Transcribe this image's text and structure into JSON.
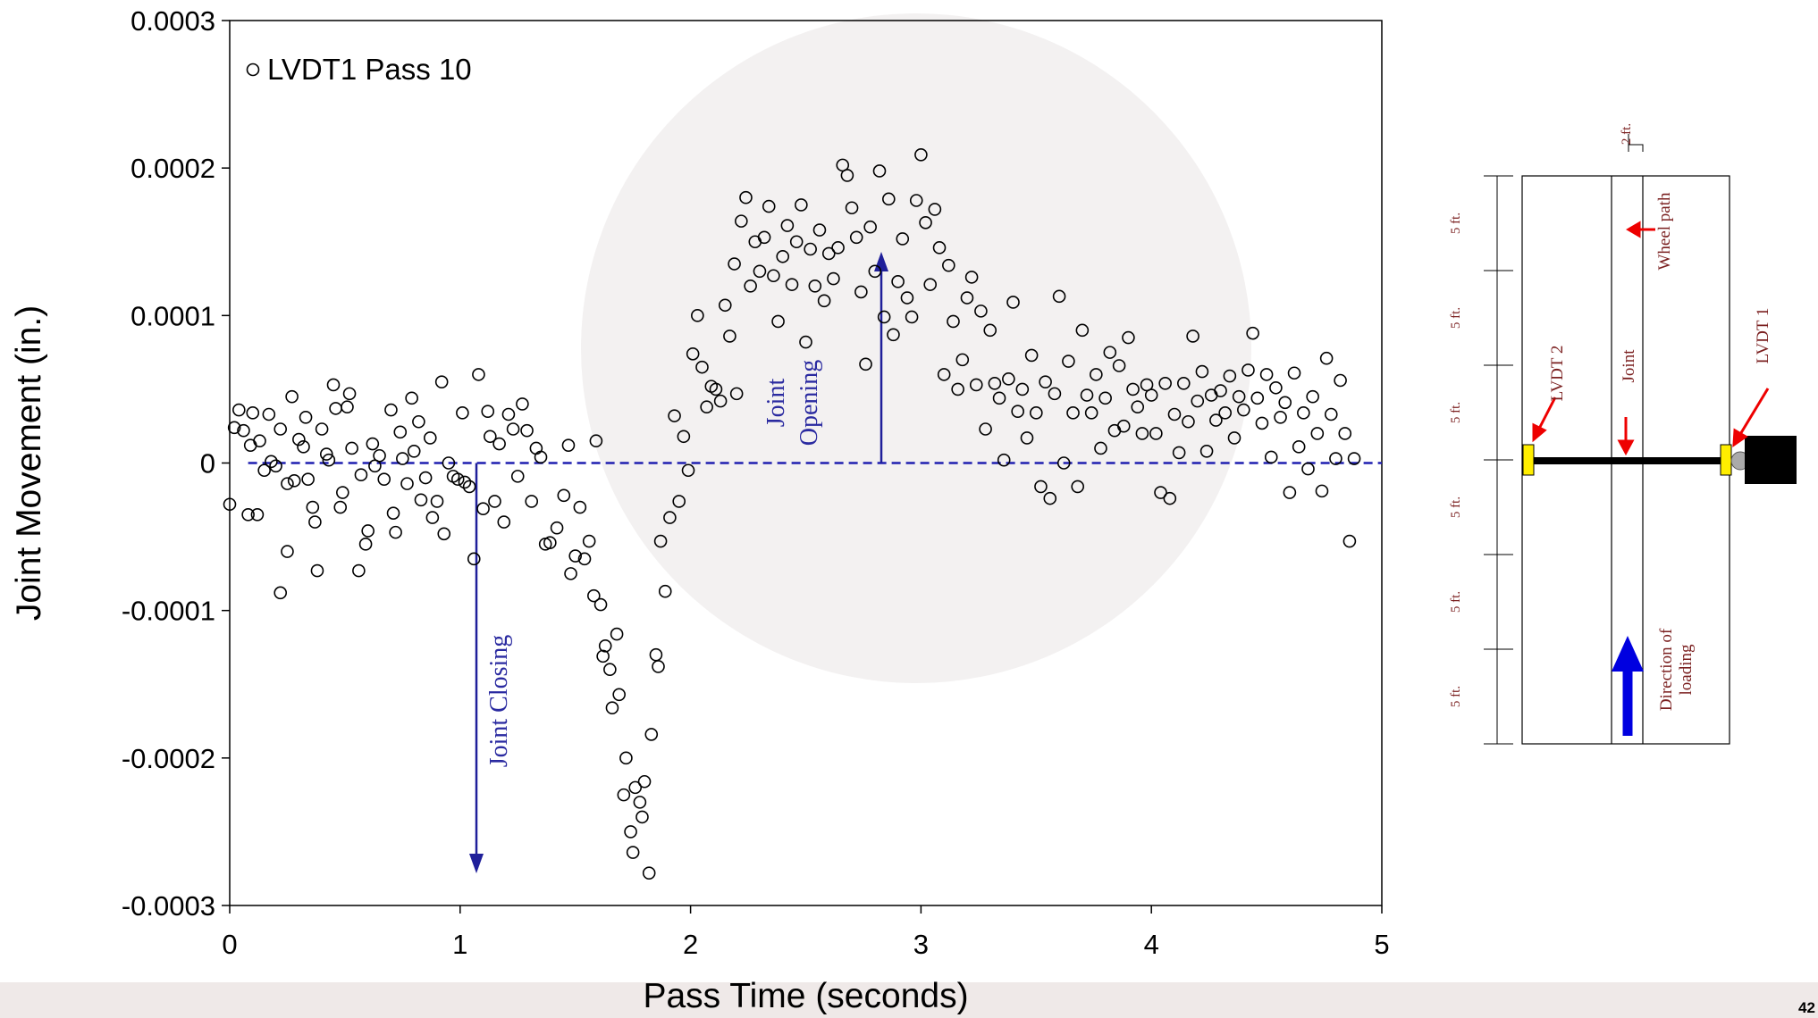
{
  "chart_data": {
    "type": "scatter",
    "xlabel": "Pass Time (seconds)",
    "ylabel": "Joint Movement (in.)",
    "xlim": [
      0,
      5
    ],
    "xticks": [
      0,
      1,
      2,
      3,
      4,
      5
    ],
    "ylim": [
      -0.0003,
      0.0003
    ],
    "yticks": [
      -0.0003,
      -0.0002,
      -0.0001,
      0,
      0.0001,
      0.0002,
      0.0003
    ],
    "legend": "upper left",
    "annotations": [
      [
        "Joint Closing"
      ],
      [
        "Joint",
        "Opening"
      ]
    ],
    "series": [
      {
        "name": "LVDT1 Pass 10",
        "color": "#000000",
        "x": [
          0.0,
          0.02,
          0.04,
          0.06,
          0.08,
          0.09,
          0.1,
          0.12,
          0.13,
          0.15,
          0.17,
          0.18,
          0.2,
          0.22,
          0.22,
          0.25,
          0.25,
          0.27,
          0.28,
          0.3,
          0.32,
          0.33,
          0.34,
          0.36,
          0.37,
          0.38,
          0.4,
          0.42,
          0.43,
          0.45,
          0.46,
          0.48,
          0.49,
          0.51,
          0.52,
          0.53,
          0.56,
          0.57,
          0.59,
          0.6,
          0.62,
          0.63,
          0.65,
          0.67,
          0.7,
          0.71,
          0.72,
          0.74,
          0.75,
          0.77,
          0.79,
          0.8,
          0.82,
          0.83,
          0.85,
          0.87,
          0.88,
          0.9,
          0.92,
          0.93,
          0.95,
          0.97,
          0.99,
          1.01,
          1.02,
          1.04,
          1.06,
          1.08,
          1.1,
          1.12,
          1.13,
          1.15,
          1.17,
          1.19,
          1.21,
          1.23,
          1.25,
          1.27,
          1.29,
          1.31,
          1.33,
          1.35,
          1.37,
          1.39,
          1.42,
          1.45,
          1.47,
          1.48,
          1.5,
          1.52,
          1.54,
          1.56,
          1.58,
          1.59,
          1.61,
          1.62,
          1.63,
          1.65,
          1.66,
          1.68,
          1.69,
          1.71,
          1.72,
          1.74,
          1.75,
          1.76,
          1.78,
          1.79,
          1.8,
          1.82,
          1.83,
          1.85,
          1.86,
          1.87,
          1.89,
          1.91,
          1.93,
          1.95,
          1.97,
          1.99,
          2.01,
          2.03,
          2.05,
          2.07,
          2.09,
          2.11,
          2.13,
          2.15,
          2.17,
          2.19,
          2.2,
          2.22,
          2.24,
          2.26,
          2.28,
          2.3,
          2.32,
          2.34,
          2.36,
          2.38,
          2.4,
          2.42,
          2.44,
          2.46,
          2.48,
          2.5,
          2.52,
          2.54,
          2.56,
          2.58,
          2.6,
          2.62,
          2.64,
          2.66,
          2.68,
          2.7,
          2.72,
          2.74,
          2.76,
          2.78,
          2.8,
          2.82,
          2.84,
          2.86,
          2.88,
          2.9,
          2.92,
          2.94,
          2.96,
          2.98,
          3.0,
          3.02,
          3.04,
          3.06,
          3.08,
          3.1,
          3.12,
          3.14,
          3.16,
          3.18,
          3.2,
          3.22,
          3.24,
          3.26,
          3.28,
          3.3,
          3.32,
          3.34,
          3.36,
          3.38,
          3.4,
          3.42,
          3.44,
          3.46,
          3.48,
          3.5,
          3.52,
          3.54,
          3.56,
          3.58,
          3.6,
          3.62,
          3.64,
          3.66,
          3.68,
          3.7,
          3.72,
          3.74,
          3.76,
          3.78,
          3.8,
          3.82,
          3.84,
          3.86,
          3.88,
          3.9,
          3.92,
          3.94,
          3.96,
          3.98,
          4.0,
          4.02,
          4.04,
          4.06,
          4.08,
          4.1,
          4.12,
          4.14,
          4.16,
          4.18,
          4.2,
          4.22,
          4.24,
          4.26,
          4.28,
          4.3,
          4.32,
          4.34,
          4.36,
          4.38,
          4.4,
          4.42,
          4.44,
          4.46,
          4.48,
          4.5,
          4.52,
          4.54,
          4.56,
          4.58,
          4.6,
          4.62,
          4.64,
          4.66,
          4.68,
          4.7,
          4.72,
          4.74,
          4.76,
          4.78,
          4.8,
          4.82,
          4.84,
          4.86,
          4.88
        ],
        "values": [
          -2.8e-05,
          2.4e-05,
          3.6e-05,
          2.2e-05,
          -3.5e-05,
          1.2e-05,
          3.4e-05,
          -3.5e-05,
          1.5e-05,
          -5e-06,
          3.3e-05,
          1e-06,
          -2e-06,
          2.3e-05,
          -8.8e-05,
          -1.4e-05,
          -6e-05,
          4.5e-05,
          -1.2e-05,
          1.6e-05,
          1.1e-05,
          3.1e-05,
          -1.1e-05,
          -3e-05,
          -4e-05,
          -7.3e-05,
          2.3e-05,
          6e-06,
          2e-06,
          5.3e-05,
          3.7e-05,
          -3e-05,
          -2e-05,
          3.8e-05,
          4.7e-05,
          1e-05,
          -7.3e-05,
          -8e-06,
          -5.5e-05,
          -4.6e-05,
          1.3e-05,
          -2e-06,
          5e-06,
          -1.1e-05,
          3.6e-05,
          -3.4e-05,
          -4.7e-05,
          2.1e-05,
          3e-06,
          -1.4e-05,
          4.4e-05,
          8e-06,
          2.8e-05,
          -2.5e-05,
          -1e-05,
          1.7e-05,
          -3.7e-05,
          -2.6e-05,
          5.5e-05,
          -4.8e-05,
          0,
          -9e-06,
          -1.1e-05,
          3.4e-05,
          -1.3e-05,
          -1.6e-05,
          -6.5e-05,
          6e-05,
          -3.1e-05,
          3.5e-05,
          1.8e-05,
          -2.6e-05,
          1.3e-05,
          -4e-05,
          3.3e-05,
          2.3e-05,
          -9e-06,
          4e-05,
          2.2e-05,
          -2.6e-05,
          1e-05,
          4e-06,
          -5.5e-05,
          -5.4e-05,
          -4.4e-05,
          -2.2e-05,
          1.2e-05,
          -7.5e-05,
          -6.3e-05,
          -3e-05,
          -6.5e-05,
          -5.3e-05,
          -9e-05,
          1.5e-05,
          -9.6e-05,
          -0.000131,
          -0.000124,
          -0.00014,
          -0.000166,
          -0.000116,
          -0.000157,
          -0.000225,
          -0.0002,
          -0.00025,
          -0.000264,
          -0.00022,
          -0.00023,
          -0.00024,
          -0.000216,
          -0.000278,
          -0.000184,
          -0.00013,
          -0.000138,
          -5.3e-05,
          -8.7e-05,
          -3.7e-05,
          3.2e-05,
          -2.6e-05,
          1.8e-05,
          -5e-06,
          7.4e-05,
          0.0001,
          6.5e-05,
          3.8e-05,
          5.2e-05,
          5e-05,
          4.2e-05,
          0.000107,
          8.6e-05,
          0.000135,
          4.7e-05,
          0.000164,
          0.00018,
          0.00012,
          0.00015,
          0.00013,
          0.000153,
          0.000174,
          0.000127,
          9.6e-05,
          0.00014,
          0.000161,
          0.000121,
          0.00015,
          0.000175,
          8.2e-05,
          0.000145,
          0.00012,
          0.000158,
          0.00011,
          0.000142,
          0.000125,
          0.000146,
          0.000202,
          0.000195,
          0.000173,
          0.000153,
          0.000116,
          6.7e-05,
          0.00016,
          0.00013,
          0.000198,
          9.9e-05,
          0.000179,
          8.7e-05,
          0.000123,
          0.000152,
          0.000112,
          9.9e-05,
          0.000178,
          0.000209,
          0.000163,
          0.000121,
          0.000172,
          0.000146,
          6e-05,
          0.000134,
          9.6e-05,
          5e-05,
          7e-05,
          0.000112,
          0.000126,
          5.3e-05,
          0.000103,
          2.3e-05,
          9e-05,
          5.4e-05,
          4.4e-05,
          2e-06,
          5.7e-05,
          0.000109,
          3.5e-05,
          5e-05,
          1.7e-05,
          7.3e-05,
          3.4e-05,
          -1.6e-05,
          5.5e-05,
          -2.4e-05,
          4.7e-05,
          0.000113,
          0,
          6.9e-05,
          3.4e-05,
          -1.6e-05,
          9e-05,
          4.6e-05,
          3.4e-05,
          6e-05,
          1e-05,
          4.4e-05,
          7.5e-05,
          2.2e-05,
          6.6e-05,
          2.5e-05,
          8.5e-05,
          5e-05,
          3.8e-05,
          2e-05,
          5.3e-05,
          4.6e-05,
          2e-05,
          -2e-05,
          5.4e-05,
          -2.4e-05,
          3.3e-05,
          7e-06,
          5.4e-05,
          2.8e-05,
          8.6e-05,
          4.2e-05,
          6.2e-05,
          8e-06,
          4.6e-05,
          2.9e-05,
          4.9e-05,
          3.4e-05,
          5.9e-05,
          1.7e-05,
          4.5e-05,
          3.6e-05,
          6.3e-05,
          8.8e-05,
          4.4e-05,
          2.7e-05,
          6e-05,
          4e-06,
          5.1e-05,
          3.1e-05,
          4.1e-05,
          -2e-05,
          6.1e-05,
          1.1e-05,
          3.4e-05,
          -4e-06,
          4.5e-05,
          2e-05,
          -1.9e-05,
          7.1e-05,
          3.3e-05,
          3e-06,
          5.6e-05,
          2e-05,
          -5.3e-05,
          3e-06
        ]
      }
    ]
  },
  "diagram": {
    "width_label": "2 ft.",
    "segment_labels": [
      "5 ft.",
      "5 ft.",
      "5 ft.",
      "5 ft.",
      "5 ft.",
      "5 ft."
    ],
    "wheel_path": "Wheel path",
    "joint": "Joint",
    "lvdt1": "LVDT 1",
    "lvdt2": "LVDT 2",
    "direction": [
      "Direction of",
      "loading"
    ]
  },
  "page_number": "42"
}
